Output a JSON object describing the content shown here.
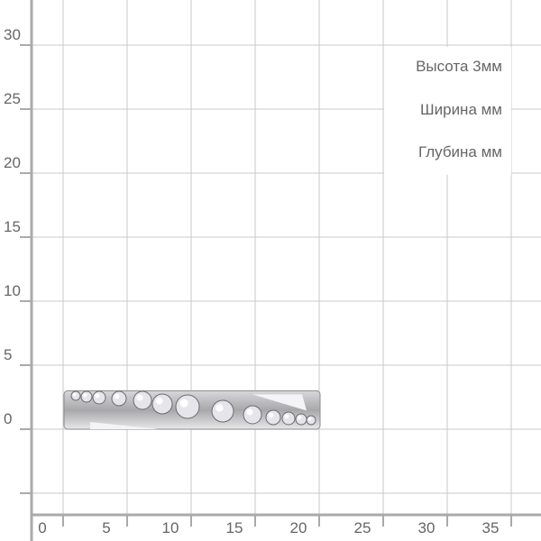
{
  "axes": {
    "y_ticks": [
      "30",
      "25",
      "20",
      "15",
      "10",
      "5",
      "0"
    ],
    "x_ticks": [
      "0",
      "5",
      "10",
      "15",
      "20",
      "25",
      "30",
      "35"
    ],
    "unit_spacing": 5
  },
  "dimensions": {
    "height": "Высота  3мм",
    "width": "Ширина мм",
    "depth": "Глубина мм"
  },
  "product": {
    "type": "ring with stone row",
    "metal_color": "#a8a8aa",
    "stone_color": "#e6e6ea",
    "approx_length_units": 20,
    "approx_height_units": 3
  },
  "colors": {
    "grid": "#c8c8c8",
    "axis": "#aaaaaa",
    "text": "#666666"
  }
}
